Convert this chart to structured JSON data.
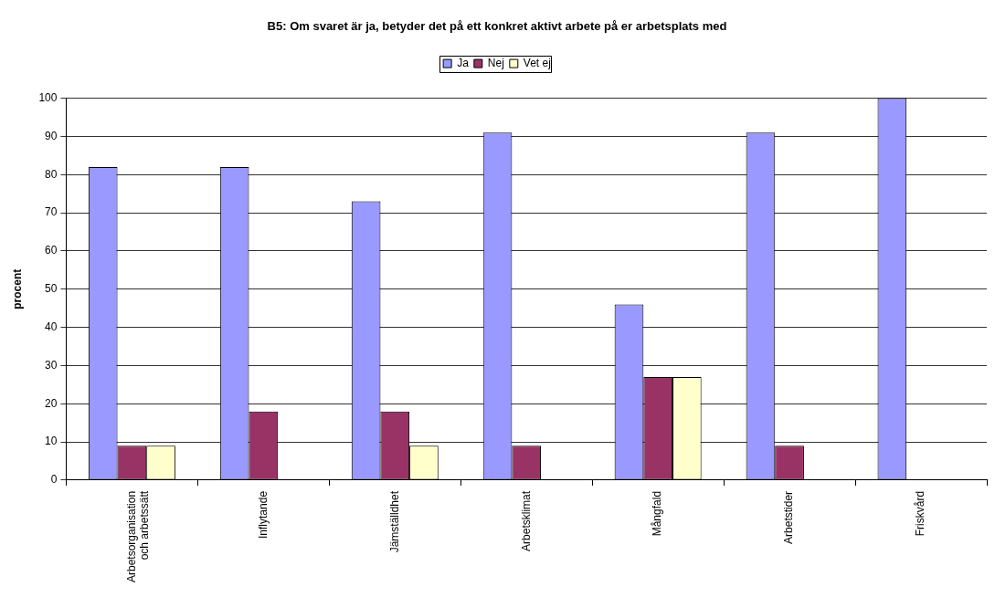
{
  "chart_data": {
    "type": "bar",
    "title": "B5: Om svaret är ja, betyder det på ett konkret aktivt arbete på er arbetsplats med",
    "ylabel": "procent",
    "categories": [
      "Arbetsorganisation och arbetssätt",
      "Inflytande",
      "Jämställdhet",
      "Arbetsklimat",
      "Mångfald",
      "Arbetstider",
      "Friskvård"
    ],
    "series": [
      {
        "name": "Ja",
        "color": "#9999ff",
        "values": [
          82,
          82,
          73,
          91,
          46,
          91,
          100
        ]
      },
      {
        "name": "Nej",
        "color": "#993366",
        "values": [
          9,
          18,
          18,
          9,
          27,
          9,
          0
        ]
      },
      {
        "name": "Vet ej",
        "color": "#ffffcc",
        "values": [
          9,
          0,
          9,
          0,
          27,
          0,
          0
        ]
      }
    ],
    "ylim": [
      0,
      100
    ],
    "yticks": [
      0,
      10,
      20,
      30,
      40,
      50,
      60,
      70,
      80,
      90,
      100
    ],
    "grid": "y",
    "legend": "top"
  }
}
